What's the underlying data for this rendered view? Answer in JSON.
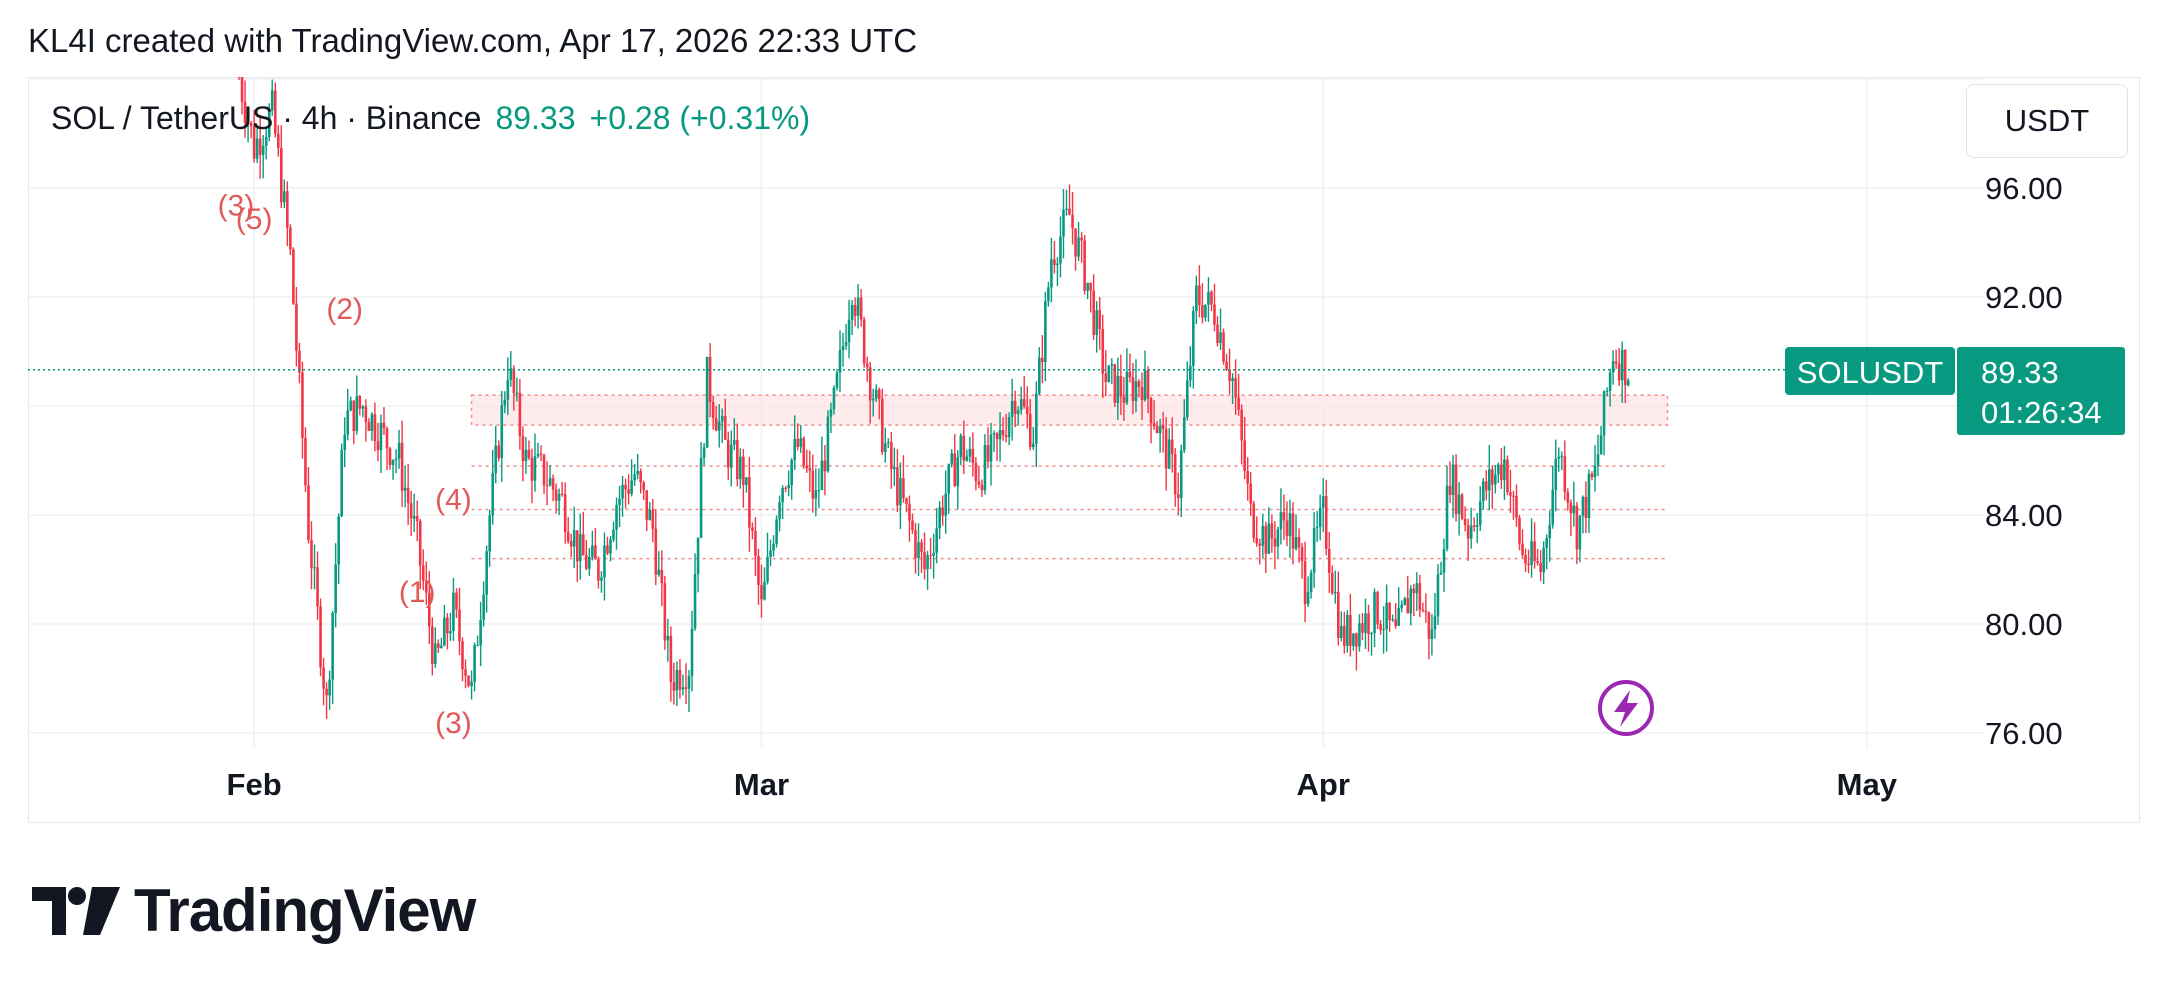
{
  "header": {
    "caption": "KL4I created with TradingView.com, Apr 17, 2026 22:33 UTC"
  },
  "legend": {
    "symbol": "SOL / TetherUS · 4h · Binance",
    "last": "89.33",
    "change": "+0.28 (+0.31%)"
  },
  "currency_button": {
    "label": "USDT"
  },
  "price_badge": {
    "symbol": "SOLUSDT",
    "price": "89.33",
    "countdown": "01:26:34"
  },
  "brand": {
    "name": "TradingView"
  },
  "colors": {
    "up": "#089981",
    "down": "#f23645",
    "wave_label": "#e05a5a",
    "zone_fill": "#fde3e3",
    "zone_line": "#f28b8b",
    "badge": "#089981",
    "bolt": "#9c27b0"
  },
  "chart_data": {
    "type": "candlestick",
    "title": "SOL / TetherUS · 4h · Binance",
    "x_labels": [
      "Feb",
      "Mar",
      "Apr",
      "May"
    ],
    "y_ticks": [
      "96.00",
      "92.00",
      "84.00",
      "80.00",
      "76.00"
    ],
    "ylim": [
      75.5,
      100.5
    ],
    "last_price": 89.33,
    "grid": true,
    "close_path": [
      [
        "2026-01-31",
        100.6
      ],
      [
        "2026-02-01",
        97.5
      ],
      [
        "2026-02-02",
        98.8
      ],
      [
        "2026-02-03",
        93.5
      ],
      [
        "2026-02-04",
        83.5
      ],
      [
        "2026-02-05",
        77.0
      ],
      [
        "2026-02-06",
        87.5
      ],
      [
        "2026-02-07",
        88.0
      ],
      [
        "2026-02-08",
        87.0
      ],
      [
        "2026-02-09",
        86.0
      ],
      [
        "2026-02-10",
        83.0
      ],
      [
        "2026-02-11",
        78.5
      ],
      [
        "2026-02-12",
        80.5
      ],
      [
        "2026-02-13",
        77.5
      ],
      [
        "2026-02-14",
        84.0
      ],
      [
        "2026-02-15",
        89.5
      ],
      [
        "2026-02-16",
        86.0
      ],
      [
        "2026-02-17",
        85.5
      ],
      [
        "2026-02-18",
        84.5
      ],
      [
        "2026-02-19",
        82.5
      ],
      [
        "2026-02-20",
        82.0
      ],
      [
        "2026-02-21",
        84.5
      ],
      [
        "2026-02-22",
        85.5
      ],
      [
        "2026-02-23",
        83.5
      ],
      [
        "2026-02-24",
        78.0
      ],
      [
        "2026-02-25",
        78.5
      ],
      [
        "2026-02-26",
        89.0
      ],
      [
        "2026-02-27",
        86.5
      ],
      [
        "2026-02-28",
        85.5
      ],
      [
        "2026-03-01",
        80.5
      ],
      [
        "2026-03-02",
        85.0
      ],
      [
        "2026-03-03",
        86.5
      ],
      [
        "2026-03-04",
        84.5
      ],
      [
        "2026-03-05",
        88.0
      ],
      [
        "2026-03-06",
        92.5
      ],
      [
        "2026-03-07",
        89.0
      ],
      [
        "2026-03-08",
        86.0
      ],
      [
        "2026-03-09",
        84.0
      ],
      [
        "2026-03-10",
        82.0
      ],
      [
        "2026-03-11",
        84.5
      ],
      [
        "2026-03-12",
        86.5
      ],
      [
        "2026-03-13",
        85.5
      ],
      [
        "2026-03-14",
        86.5
      ],
      [
        "2026-03-15",
        88.5
      ],
      [
        "2026-03-16",
        87.0
      ],
      [
        "2026-03-17",
        93.5
      ],
      [
        "2026-03-18",
        95.0
      ],
      [
        "2026-03-19",
        92.5
      ],
      [
        "2026-03-20",
        89.0
      ],
      [
        "2026-03-21",
        88.5
      ],
      [
        "2026-03-22",
        89.0
      ],
      [
        "2026-03-23",
        87.0
      ],
      [
        "2026-03-24",
        85.0
      ],
      [
        "2026-03-25",
        92.0
      ],
      [
        "2026-03-26",
        91.5
      ],
      [
        "2026-03-27",
        89.0
      ],
      [
        "2026-03-28",
        84.0
      ],
      [
        "2026-03-29",
        83.0
      ],
      [
        "2026-03-30",
        84.0
      ],
      [
        "2026-03-31",
        81.5
      ],
      [
        "2026-04-01",
        84.0
      ],
      [
        "2026-04-02",
        79.5
      ],
      [
        "2026-04-03",
        80.0
      ],
      [
        "2026-04-04",
        80.5
      ],
      [
        "2026-04-05",
        79.5
      ],
      [
        "2026-04-06",
        81.5
      ],
      [
        "2026-04-07",
        79.5
      ],
      [
        "2026-04-08",
        85.5
      ],
      [
        "2026-04-09",
        83.5
      ],
      [
        "2026-04-10",
        85.0
      ],
      [
        "2026-04-11",
        86.0
      ],
      [
        "2026-04-12",
        82.5
      ],
      [
        "2026-04-13",
        82.0
      ],
      [
        "2026-04-14",
        86.5
      ],
      [
        "2026-04-15",
        83.5
      ],
      [
        "2026-04-16",
        85.5
      ],
      [
        "2026-04-17",
        90.0
      ],
      [
        "2026-04-17T20:00",
        89.33
      ]
    ],
    "zones": [
      [
        87.3,
        88.4
      ],
      [
        85.8,
        86.1
      ],
      [
        82.4,
        82.6
      ]
    ],
    "wave_labels": [
      {
        "text": "(3)",
        "date": "2026-01-31",
        "price": 95.0
      },
      {
        "text": "(5)",
        "date": "2026-02-01",
        "price": 94.5
      },
      {
        "text": "(2)",
        "date": "2026-02-06",
        "price": 91.2
      },
      {
        "text": "(4)",
        "date": "2026-02-12",
        "price": 84.2
      },
      {
        "text": "(1)",
        "date": "2026-02-10",
        "price": 80.8
      },
      {
        "text": "(3)",
        "date": "2026-02-12",
        "price": 76.0
      }
    ]
  }
}
